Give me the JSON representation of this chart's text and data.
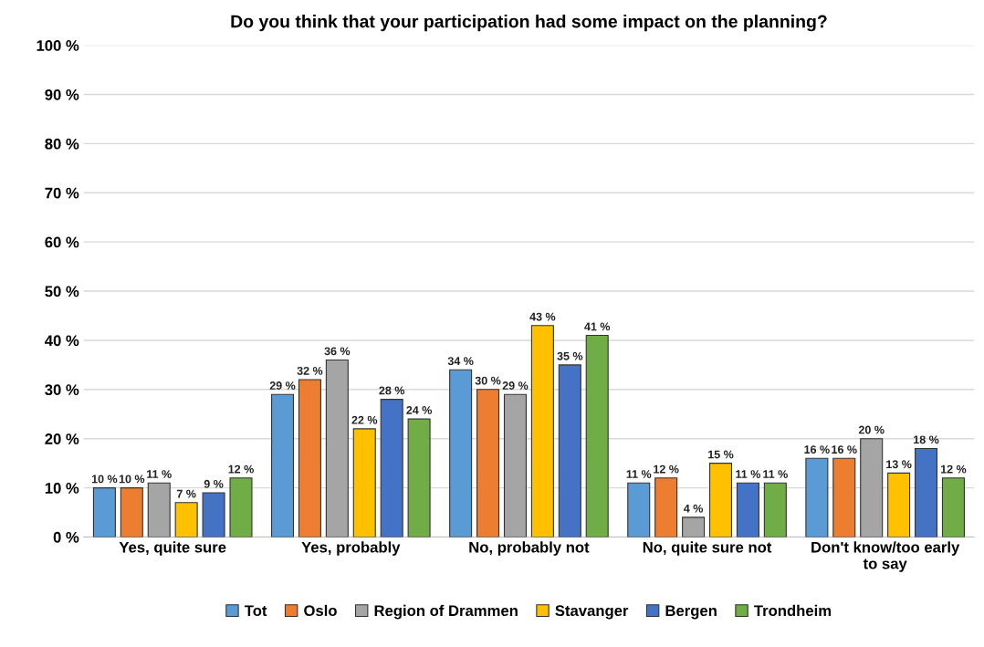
{
  "chart_data": {
    "type": "bar",
    "title": "Do you think that your participation had some impact on the planning?",
    "categories": [
      "Yes, quite sure",
      "Yes, probably",
      "No, probably not",
      "No, quite sure not",
      "Don't know/too early\nto say"
    ],
    "series": [
      {
        "name": "Tot",
        "color": "#5b9bd5",
        "values": [
          10,
          29,
          34,
          11,
          16
        ],
        "value_labels": [
          "10 %",
          "29 %",
          "34 %",
          "11 %",
          "16 %"
        ]
      },
      {
        "name": "Oslo",
        "color": "#ed7d31",
        "values": [
          10,
          32,
          30,
          12,
          16
        ],
        "value_labels": [
          "10 %",
          "32 %",
          "30 %",
          "12 %",
          "16 %"
        ]
      },
      {
        "name": "Region of Drammen",
        "color": "#a5a5a5",
        "values": [
          11,
          36,
          29,
          4,
          20
        ],
        "value_labels": [
          "11 %",
          "36 %",
          "29 %",
          "4 %",
          "20 %"
        ]
      },
      {
        "name": "Stavanger",
        "color": "#ffc000",
        "values": [
          7,
          22,
          43,
          15,
          13
        ],
        "value_labels": [
          "7 %",
          "22 %",
          "43 %",
          "15 %",
          "13 %"
        ]
      },
      {
        "name": "Bergen",
        "color": "#4472c4",
        "values": [
          9,
          28,
          35,
          11,
          18
        ],
        "value_labels": [
          "9 %",
          "28 %",
          "35 %",
          "11 %",
          "18 %"
        ]
      },
      {
        "name": "Trondheim",
        "color": "#70ad47",
        "values": [
          12,
          24,
          41,
          11,
          12
        ],
        "value_labels": [
          "12 %",
          "24 %",
          "41 %",
          "11 %",
          "12 %"
        ]
      }
    ],
    "ylim": [
      0,
      100
    ],
    "yticks": [
      {
        "value": 0,
        "label": "0 %"
      },
      {
        "value": 10,
        "label": "10 %"
      },
      {
        "value": 20,
        "label": "20 %"
      },
      {
        "value": 30,
        "label": "30 %"
      },
      {
        "value": 40,
        "label": "40 %"
      },
      {
        "value": 50,
        "label": "50 %"
      },
      {
        "value": 60,
        "label": "60 %"
      },
      {
        "value": 70,
        "label": "70 %"
      },
      {
        "value": 80,
        "label": "80 %"
      },
      {
        "value": 90,
        "label": "90 %"
      },
      {
        "value": 100,
        "label": "100 %"
      }
    ],
    "grid": "y",
    "legend": "bottom"
  }
}
